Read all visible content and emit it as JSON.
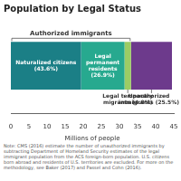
{
  "chart_data": {
    "type": "bar",
    "title": "Population by Legal Status",
    "orientation": "horizontal",
    "stacked": true,
    "categories": [
      null
    ],
    "series": [
      {
        "name": "Naturalized citizens (43.6%)",
        "color": "#1b7f86",
        "values": [
          19.4
        ]
      },
      {
        "name": "Legal permanent residents (26.9%)",
        "color": "#27a98f",
        "values": [
          12.0
        ]
      },
      {
        "name": "Legal temporary migrants (4.0%)",
        "color": "#9ccc65",
        "values": [
          1.8
        ]
      },
      {
        "name": "Unauthorized immigrants (25.5%)",
        "color": "#6d3a8c",
        "values": [
          11.3
        ]
      }
    ],
    "annotations": [
      {
        "text": "Authorized immigrants",
        "series": [
          "Naturalized citizens (43.6%)",
          "Legal permanent residents (26.9%)",
          "Legal temporary migrants (4.0%)"
        ]
      }
    ],
    "xlabel": "Millions of people",
    "xlim": [
      0,
      45
    ],
    "xticks": [
      0,
      5,
      10,
      15,
      20,
      25,
      30,
      35,
      40,
      45
    ],
    "grid": false,
    "tick_labels": "x",
    "note": "Note: CMS (2016) estimate the number of unauthorized immigrants by subtracting Department of Homeland Security estimates of the legal immigrant population from the ACS foreign-born population. U.S. citizens born abroad and residents of U.S. territories are excluded. For more on the methodology, see Baker (2017) and Passel and Cohn (2016)."
  }
}
